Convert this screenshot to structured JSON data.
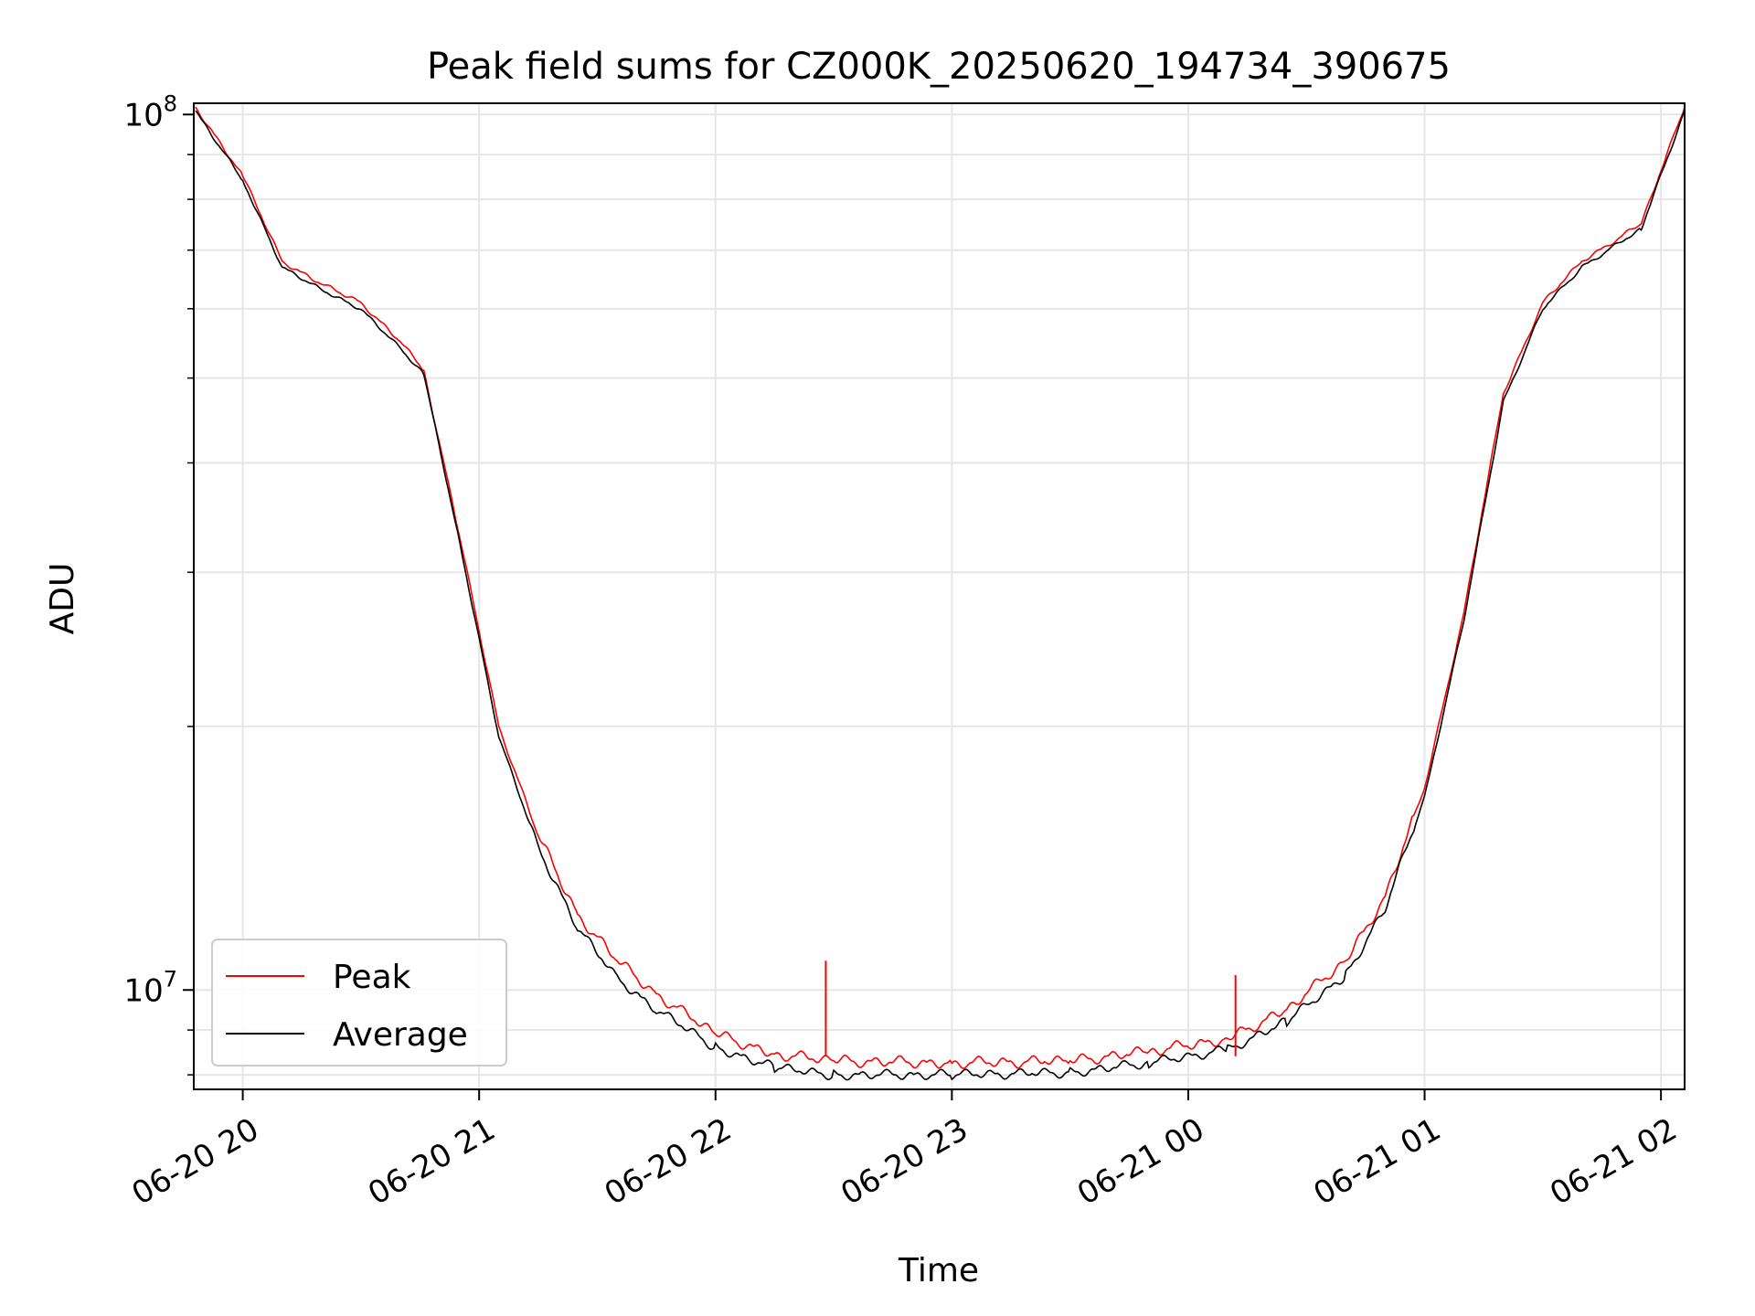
{
  "chart_data": {
    "type": "line",
    "title": "Peak field sums for CZ000K_20250620_194734_390675",
    "xlabel": "Time",
    "ylabel": "ADU",
    "x_tick_labels": [
      "06-20 20",
      "06-20 21",
      "06-20 22",
      "06-20 23",
      "06-21 00",
      "06-21 01",
      "06-21 02"
    ],
    "y_scale": "log",
    "y_tick_labels": [
      {
        "base": "10",
        "exp": "7"
      },
      {
        "base": "10",
        "exp": "8"
      }
    ],
    "xlim": [
      "2025-06-20T19:47:34",
      "2025-06-21T02:06:00"
    ],
    "ylim": [
      7700000,
      103000000
    ],
    "grid": true,
    "legend_position": "lower-left",
    "series": [
      {
        "name": "Peak",
        "color": "#ff0000",
        "x": [
          "2025-06-20T19:48:00",
          "2025-06-20T20:00:00",
          "2025-06-20T20:10:00",
          "2025-06-20T20:20:00",
          "2025-06-20T20:30:00",
          "2025-06-20T20:40:00",
          "2025-06-20T20:46:00",
          "2025-06-20T20:55:00",
          "2025-06-20T21:05:00",
          "2025-06-20T21:15:00",
          "2025-06-20T21:25:00",
          "2025-06-20T21:35:00",
          "2025-06-20T21:45:00",
          "2025-06-20T22:00:00",
          "2025-06-20T22:15:00",
          "2025-06-20T22:30:00",
          "2025-06-20T23:00:00",
          "2025-06-20T23:30:00",
          "2025-06-20T23:50:00",
          "2025-06-21T00:10:00",
          "2025-06-21T00:25:00",
          "2025-06-21T00:40:00",
          "2025-06-21T00:50:00",
          "2025-06-21T01:00:00",
          "2025-06-21T01:10:00",
          "2025-06-21T01:20:00",
          "2025-06-21T01:30:00",
          "2025-06-21T01:40:00",
          "2025-06-21T01:55:00",
          "2025-06-21T02:06:00"
        ],
        "values": [
          102000000,
          85000000,
          68000000,
          64000000,
          61000000,
          55000000,
          51000000,
          33000000,
          20000000,
          15000000,
          12200000,
          10800000,
          9900000,
          8900000,
          8450000,
          8300000,
          8250000,
          8300000,
          8500000,
          8800000,
          9500000,
          10800000,
          12800000,
          17000000,
          27000000,
          48000000,
          61000000,
          68000000,
          75000000,
          102000000
        ]
      },
      {
        "name": "Average",
        "color": "#000000",
        "x": [
          "2025-06-20T19:48:00",
          "2025-06-20T20:00:00",
          "2025-06-20T20:10:00",
          "2025-06-20T20:20:00",
          "2025-06-20T20:30:00",
          "2025-06-20T20:40:00",
          "2025-06-20T20:46:00",
          "2025-06-20T20:55:00",
          "2025-06-20T21:05:00",
          "2025-06-20T21:15:00",
          "2025-06-20T21:25:00",
          "2025-06-20T21:35:00",
          "2025-06-20T21:45:00",
          "2025-06-20T22:00:00",
          "2025-06-20T22:15:00",
          "2025-06-20T22:30:00",
          "2025-06-20T23:00:00",
          "2025-06-20T23:30:00",
          "2025-06-20T23:50:00",
          "2025-06-21T00:10:00",
          "2025-06-21T00:25:00",
          "2025-06-21T00:40:00",
          "2025-06-21T00:50:00",
          "2025-06-21T01:00:00",
          "2025-06-21T01:10:00",
          "2025-06-21T01:20:00",
          "2025-06-21T01:30:00",
          "2025-06-21T01:40:00",
          "2025-06-21T01:55:00",
          "2025-06-21T02:06:00"
        ],
        "values": [
          101000000,
          84000000,
          67000000,
          63000000,
          60000000,
          54000000,
          50500000,
          32500000,
          19500000,
          14500000,
          11800000,
          10300000,
          9500000,
          8600000,
          8150000,
          8000000,
          8000000,
          8050000,
          8250000,
          8550000,
          9200000,
          10400000,
          12400000,
          16600000,
          26500000,
          47000000,
          60000000,
          67000000,
          74000000,
          101000000
        ]
      }
    ],
    "spikes": [
      {
        "series": "Peak",
        "x": "2025-06-20T22:28:00",
        "value": 10800000
      },
      {
        "series": "Peak",
        "x": "2025-06-21T00:12:00",
        "value": 10400000
      }
    ]
  }
}
